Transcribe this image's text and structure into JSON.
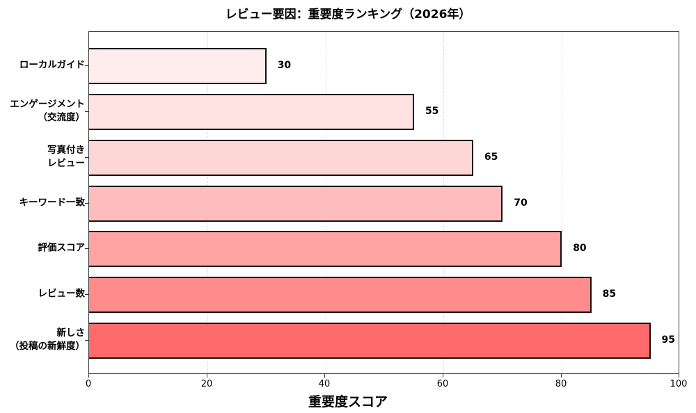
{
  "chart_data": {
    "type": "bar",
    "orientation": "horizontal",
    "title": "レビュー要因：重要度ランキング（2026年）",
    "xlabel": "重要度スコア",
    "ylabel": "",
    "xlim": [
      0,
      100
    ],
    "xticks": [
      "0",
      "20",
      "40",
      "60",
      "80",
      "100"
    ],
    "grid": "vertical dashed",
    "categories": [
      "ローカルガイド",
      "エンゲージメント\n（交流度）",
      "写真付き\nレビュー",
      "キーワード一致",
      "評価スコア",
      "レビュー数",
      "新しさ\n（投稿の新鮮度）"
    ],
    "values": [
      30,
      55,
      65,
      70,
      80,
      85,
      95
    ],
    "value_labels": [
      "30",
      "55",
      "65",
      "70",
      "80",
      "85",
      "95"
    ],
    "colors": [
      "#ffeded",
      "#ffe3e3",
      "#ffd6d6",
      "#ffbcbc",
      "#ffa3a3",
      "#ff8c8c",
      "#ff6b6b"
    ]
  },
  "labels": {
    "cat0_l1": "ローカルガイド",
    "cat1_l1": "エンゲージメント",
    "cat1_l2": "（交流度）",
    "cat2_l1": "写真付き",
    "cat2_l2": "レビュー",
    "cat3_l1": "キーワード一致",
    "cat4_l1": "評価スコア",
    "cat5_l1": "レビュー数",
    "cat6_l1": "新しさ",
    "cat6_l2": "（投稿の新鮮度）"
  }
}
